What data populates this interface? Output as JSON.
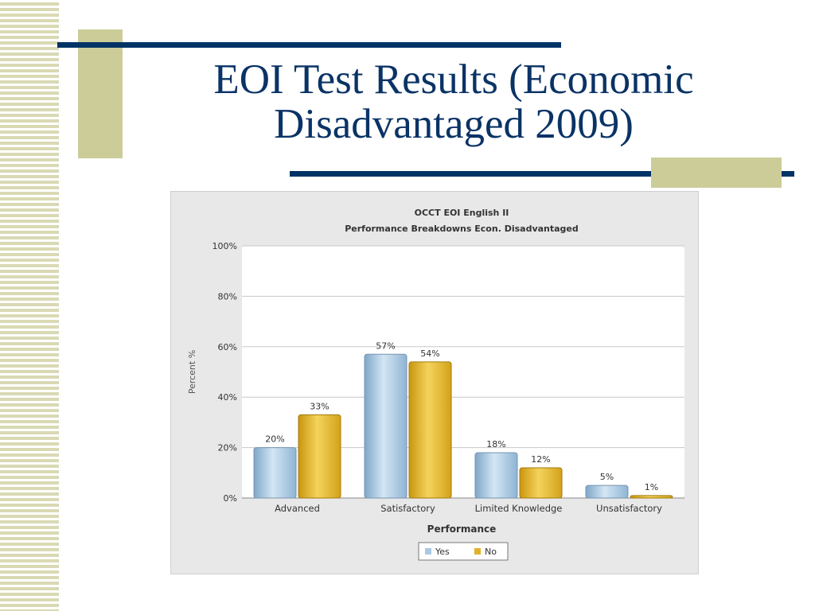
{
  "slide": {
    "title_line1": "EOI Test Results (Economic",
    "title_line2": "Disadvantaged 2009)"
  },
  "colors": {
    "accent_navy": "#003366",
    "accent_khaki": "#cccc99",
    "yes_series": "#a9c9e4",
    "no_series": "#e2b32a"
  },
  "chart_data": {
    "type": "bar",
    "title": "OCCT EOI English II",
    "subtitle": "Performance Breakdowns Econ. Disadvantaged",
    "xlabel": "Performance",
    "ylabel": "Percent %",
    "categories": [
      "Advanced",
      "Satisfactory",
      "Limited Knowledge",
      "Unsatisfactory"
    ],
    "series": [
      {
        "name": "Yes",
        "values": [
          20,
          57,
          18,
          5
        ],
        "labels": [
          "20%",
          "57%",
          "18%",
          "5%"
        ],
        "color": "#a9c9e4"
      },
      {
        "name": "No",
        "values": [
          33,
          54,
          12,
          1
        ],
        "labels": [
          "33%",
          "54%",
          "12%",
          "1%"
        ],
        "color": "#e2b32a"
      }
    ],
    "ylim": [
      0,
      100
    ],
    "yticks": [
      0,
      20,
      40,
      60,
      80,
      100
    ],
    "ytick_labels": [
      "0%",
      "20%",
      "40%",
      "60%",
      "80%",
      "100%"
    ],
    "grid": true,
    "legend_position": "bottom-center"
  }
}
